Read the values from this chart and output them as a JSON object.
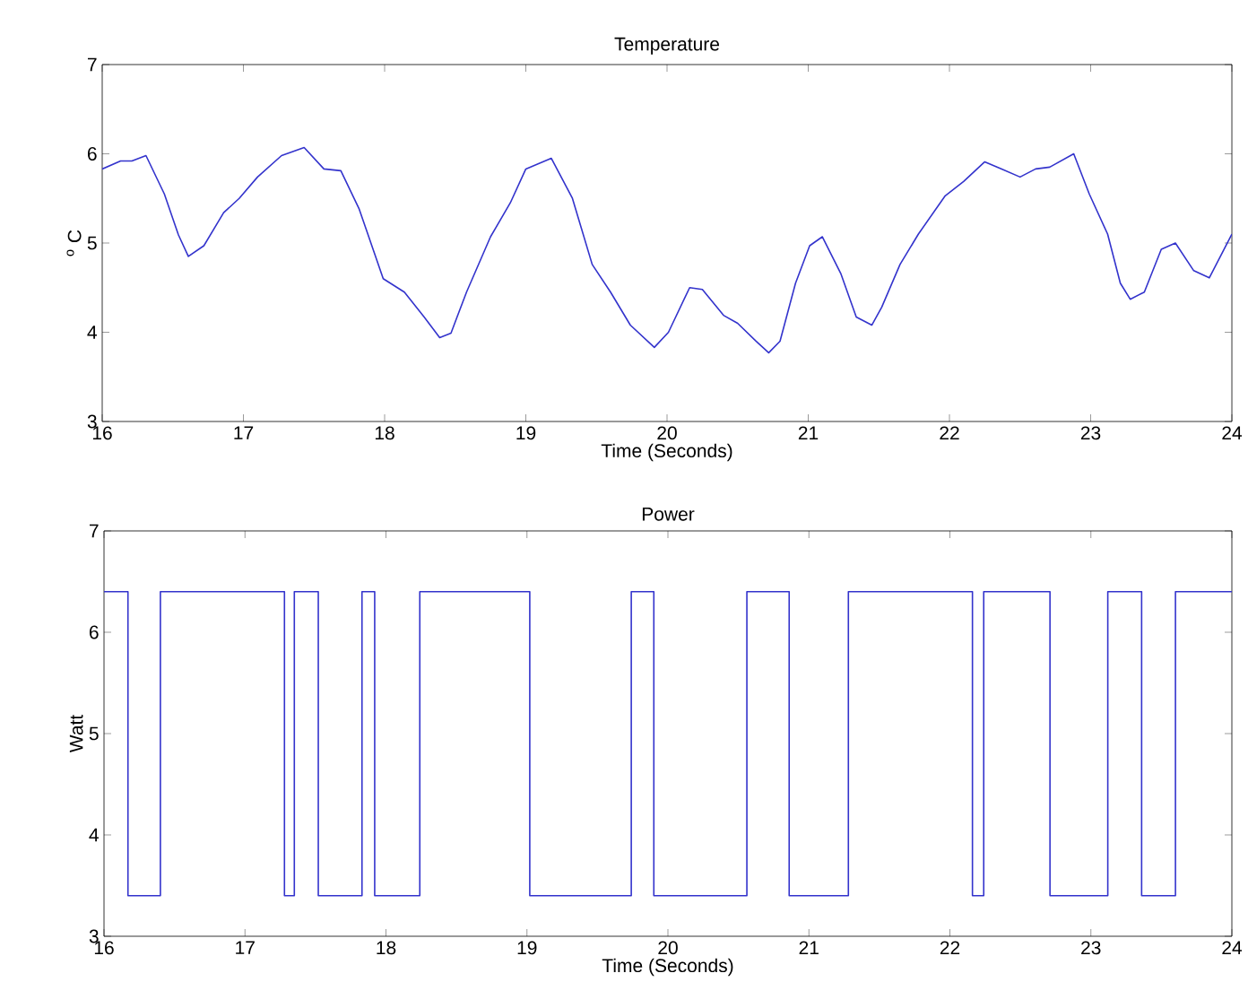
{
  "chart_data": [
    {
      "type": "line",
      "title": "Temperature",
      "xlabel": "Time (Seconds)",
      "ylabel": "$^{o}$ C",
      "xlim": [
        16,
        24
      ],
      "ylim": [
        3,
        7
      ],
      "xticks": [
        16,
        17,
        18,
        19,
        20,
        21,
        22,
        23,
        24
      ],
      "yticks": [
        3,
        4,
        5,
        6,
        7
      ],
      "grid": false,
      "series": [
        {
          "color": "#3333cc",
          "x": [
            16,
            16.13,
            16.21,
            16.31,
            16.44,
            16.54,
            16.61,
            16.72,
            16.86,
            16.97,
            17.1,
            17.27,
            17.43,
            17.57,
            17.69,
            17.82,
            17.99,
            18.14,
            18.28,
            18.39,
            18.47,
            18.58,
            18.75,
            18.89,
            19.0,
            19.18,
            19.33,
            19.47,
            19.6,
            19.74,
            19.91,
            20.01,
            20.16,
            20.25,
            20.4,
            20.5,
            20.63,
            20.72,
            20.8,
            20.91,
            21.01,
            21.1,
            21.23,
            21.34,
            21.45,
            21.52,
            21.65,
            21.78,
            21.97,
            22.1,
            22.25,
            22.37,
            22.5,
            22.61,
            22.71,
            22.88,
            22.99,
            23.12,
            23.21,
            23.28,
            23.38,
            23.5,
            23.6,
            23.73,
            23.84,
            23.99,
            24
          ],
          "values": [
            5.83,
            5.92,
            5.92,
            5.98,
            5.55,
            5.09,
            4.85,
            4.97,
            5.34,
            5.5,
            5.74,
            5.98,
            6.07,
            5.83,
            5.81,
            5.38,
            4.6,
            4.45,
            4.17,
            3.94,
            3.99,
            4.45,
            5.07,
            5.45,
            5.83,
            5.95,
            5.5,
            4.76,
            4.45,
            4.08,
            3.83,
            4.0,
            4.5,
            4.48,
            4.19,
            4.1,
            3.9,
            3.77,
            3.9,
            4.55,
            4.97,
            5.07,
            4.66,
            4.17,
            4.08,
            4.28,
            4.76,
            5.1,
            5.53,
            5.69,
            5.91,
            5.83,
            5.74,
            5.83,
            5.85,
            6.0,
            5.55,
            5.1,
            4.55,
            4.37,
            4.45,
            4.93,
            5.0,
            4.69,
            4.61,
            5.07,
            5.1
          ]
        }
      ]
    },
    {
      "type": "step",
      "title": "Power",
      "xlabel": "Time (Seconds)",
      "ylabel": "Watt",
      "xlim": [
        16,
        24
      ],
      "ylim": [
        3,
        7
      ],
      "xticks": [
        16,
        17,
        18,
        19,
        20,
        21,
        22,
        23,
        24
      ],
      "yticks": [
        3,
        4,
        5,
        6,
        7
      ],
      "grid": false,
      "series": [
        {
          "color": "#3333cc",
          "x": [
            16,
            16.17,
            16.4,
            17.28,
            17.35,
            17.52,
            17.83,
            17.92,
            18.24,
            19.02,
            19.74,
            19.9,
            20.56,
            20.86,
            21.28,
            22.16,
            22.24,
            22.71,
            23.12,
            23.36,
            23.6,
            24
          ],
          "values": [
            6.4,
            3.4,
            6.4,
            3.4,
            6.4,
            3.4,
            6.4,
            3.4,
            6.4,
            3.4,
            6.4,
            3.4,
            6.4,
            3.4,
            6.4,
            3.4,
            6.4,
            3.4,
            6.4,
            3.4,
            6.4,
            6.4
          ]
        }
      ]
    }
  ]
}
